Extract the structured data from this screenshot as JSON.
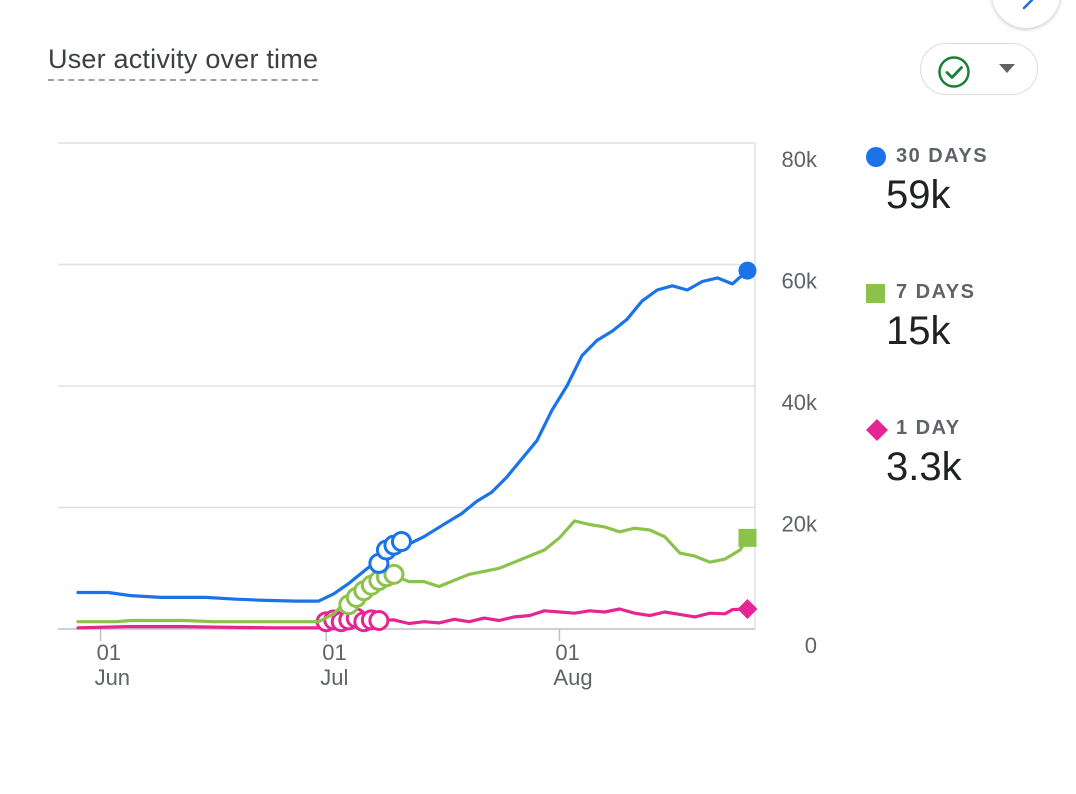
{
  "card": {
    "title": "User activity over time"
  },
  "status_icon": "check-circle-icon",
  "dropdown_icon": "caret-down-icon",
  "colors": {
    "thirty_days": "#1a73e8",
    "seven_days": "#8bc34a",
    "one_day": "#e52592",
    "grid": "#e0e0e0",
    "check": "#188038"
  },
  "legend": [
    {
      "label": "30 DAYS",
      "value": "59k",
      "marker": "circle"
    },
    {
      "label": "7 DAYS",
      "value": "15k",
      "marker": "square"
    },
    {
      "label": "1 DAY",
      "value": "3.3k",
      "marker": "diamond"
    }
  ],
  "chart_data": {
    "type": "line",
    "title": "User activity over time",
    "ylim": [
      0,
      80000
    ],
    "y_ticks": [
      "0",
      "20k",
      "40k",
      "60k",
      "80k"
    ],
    "x_ticks": [
      {
        "day": "01",
        "month": "Jun",
        "date": "2023-06-01"
      },
      {
        "day": "01",
        "month": "Jul",
        "date": "2023-07-01"
      },
      {
        "day": "01",
        "month": "Aug",
        "date": "2023-08-01"
      }
    ],
    "x_range": [
      "2023-05-29",
      "2023-08-27"
    ],
    "grid": true,
    "legend_position": "right",
    "series": [
      {
        "name": "30 DAYS",
        "points": [
          [
            "2023-05-29",
            6000
          ],
          [
            "2023-06-02",
            6000
          ],
          [
            "2023-06-05",
            5500
          ],
          [
            "2023-06-09",
            5200
          ],
          [
            "2023-06-15",
            5200
          ],
          [
            "2023-06-19",
            4900
          ],
          [
            "2023-06-23",
            4700
          ],
          [
            "2023-06-27",
            4600
          ],
          [
            "2023-06-30",
            4600
          ],
          [
            "2023-07-02",
            5800
          ],
          [
            "2023-07-04",
            7500
          ],
          [
            "2023-07-06",
            9500
          ],
          [
            "2023-07-08",
            11500
          ],
          [
            "2023-07-10",
            13000
          ],
          [
            "2023-07-12",
            14000
          ],
          [
            "2023-07-14",
            15200
          ],
          [
            "2023-07-17",
            17500
          ],
          [
            "2023-07-19",
            19000
          ],
          [
            "2023-07-21",
            21000
          ],
          [
            "2023-07-23",
            22500
          ],
          [
            "2023-07-25",
            25000
          ],
          [
            "2023-07-27",
            28000
          ],
          [
            "2023-07-29",
            31000
          ],
          [
            "2023-07-31",
            36000
          ],
          [
            "2023-08-02",
            40000
          ],
          [
            "2023-08-04",
            45000
          ],
          [
            "2023-08-06",
            47500
          ],
          [
            "2023-08-08",
            49000
          ],
          [
            "2023-08-10",
            51000
          ],
          [
            "2023-08-12",
            54000
          ],
          [
            "2023-08-14",
            55800
          ],
          [
            "2023-08-16",
            56500
          ],
          [
            "2023-08-18",
            55800
          ],
          [
            "2023-08-20",
            57200
          ],
          [
            "2023-08-22",
            57800
          ],
          [
            "2023-08-24",
            56800
          ],
          [
            "2023-08-26",
            59000
          ]
        ],
        "highlighted": [
          [
            "2023-07-08",
            10800
          ],
          [
            "2023-07-09",
            13000
          ],
          [
            "2023-07-10",
            13800
          ],
          [
            "2023-07-11",
            14400
          ]
        ]
      },
      {
        "name": "7 DAYS",
        "points": [
          [
            "2023-05-29",
            1200
          ],
          [
            "2023-06-03",
            1200
          ],
          [
            "2023-06-05",
            1400
          ],
          [
            "2023-06-12",
            1400
          ],
          [
            "2023-06-16",
            1200
          ],
          [
            "2023-06-30",
            1200
          ],
          [
            "2023-07-02",
            2500
          ],
          [
            "2023-07-04",
            5000
          ],
          [
            "2023-07-06",
            7000
          ],
          [
            "2023-07-08",
            8500
          ],
          [
            "2023-07-10",
            8800
          ],
          [
            "2023-07-12",
            7800
          ],
          [
            "2023-07-14",
            7800
          ],
          [
            "2023-07-16",
            7000
          ],
          [
            "2023-07-18",
            8000
          ],
          [
            "2023-07-20",
            9000
          ],
          [
            "2023-07-22",
            9500
          ],
          [
            "2023-07-24",
            10000
          ],
          [
            "2023-07-26",
            11000
          ],
          [
            "2023-07-28",
            12000
          ],
          [
            "2023-07-30",
            13000
          ],
          [
            "2023-08-01",
            15000
          ],
          [
            "2023-08-03",
            17800
          ],
          [
            "2023-08-05",
            17200
          ],
          [
            "2023-08-07",
            16800
          ],
          [
            "2023-08-09",
            16000
          ],
          [
            "2023-08-11",
            16600
          ],
          [
            "2023-08-13",
            16300
          ],
          [
            "2023-08-15",
            15200
          ],
          [
            "2023-08-17",
            12500
          ],
          [
            "2023-08-19",
            12000
          ],
          [
            "2023-08-21",
            11000
          ],
          [
            "2023-08-23",
            11500
          ],
          [
            "2023-08-25",
            13000
          ],
          [
            "2023-08-26",
            15000
          ]
        ],
        "highlighted": [
          [
            "2023-07-04",
            4000
          ],
          [
            "2023-07-05",
            5200
          ],
          [
            "2023-07-06",
            6300
          ],
          [
            "2023-07-07",
            7200
          ],
          [
            "2023-07-08",
            8000
          ],
          [
            "2023-07-09",
            8600
          ],
          [
            "2023-07-10",
            9000
          ]
        ]
      },
      {
        "name": "1 DAY",
        "points": [
          [
            "2023-05-29",
            200
          ],
          [
            "2023-06-05",
            400
          ],
          [
            "2023-06-12",
            400
          ],
          [
            "2023-06-17",
            300
          ],
          [
            "2023-06-24",
            200
          ],
          [
            "2023-06-30",
            200
          ],
          [
            "2023-07-02",
            1200
          ],
          [
            "2023-07-04",
            1800
          ],
          [
            "2023-07-06",
            1600
          ],
          [
            "2023-07-08",
            1400
          ],
          [
            "2023-07-10",
            1500
          ],
          [
            "2023-07-12",
            900
          ],
          [
            "2023-07-14",
            1200
          ],
          [
            "2023-07-16",
            1000
          ],
          [
            "2023-07-18",
            1600
          ],
          [
            "2023-07-20",
            1200
          ],
          [
            "2023-07-22",
            1800
          ],
          [
            "2023-07-24",
            1400
          ],
          [
            "2023-07-26",
            2000
          ],
          [
            "2023-07-28",
            2200
          ],
          [
            "2023-07-30",
            3000
          ],
          [
            "2023-08-01",
            2800
          ],
          [
            "2023-08-03",
            2600
          ],
          [
            "2023-08-05",
            3000
          ],
          [
            "2023-08-07",
            2800
          ],
          [
            "2023-08-09",
            3300
          ],
          [
            "2023-08-11",
            2600
          ],
          [
            "2023-08-13",
            2200
          ],
          [
            "2023-08-15",
            2800
          ],
          [
            "2023-08-17",
            2400
          ],
          [
            "2023-08-19",
            2000
          ],
          [
            "2023-08-21",
            2600
          ],
          [
            "2023-08-23",
            2500
          ],
          [
            "2023-08-24",
            3200
          ],
          [
            "2023-08-26",
            3300
          ]
        ],
        "highlighted": [
          [
            "2023-07-01",
            1200
          ],
          [
            "2023-07-02",
            1500
          ],
          [
            "2023-07-03",
            1200
          ],
          [
            "2023-07-04",
            1500
          ],
          [
            "2023-07-05",
            1800
          ],
          [
            "2023-07-06",
            1200
          ],
          [
            "2023-07-07",
            1500
          ],
          [
            "2023-07-08",
            1400
          ]
        ]
      }
    ]
  }
}
